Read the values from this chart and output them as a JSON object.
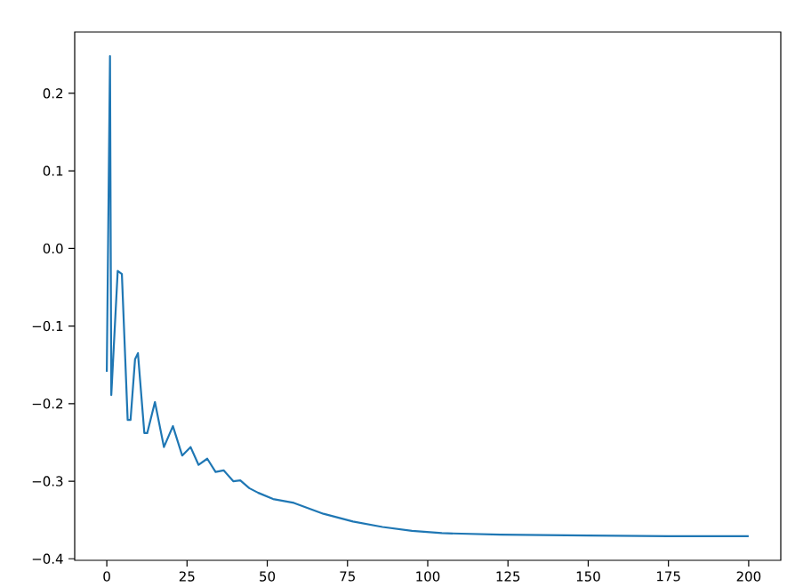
{
  "chart_data": {
    "type": "line",
    "color": "#1f77b4",
    "x": [
      0,
      1,
      1.4,
      3.4,
      4.7,
      6.5,
      7.4,
      8.8,
      9.7,
      11.7,
      12.6,
      15.0,
      17.8,
      20.6,
      23.5,
      26.1,
      28.6,
      31.3,
      33.9,
      36.4,
      39.4,
      41.6,
      44.4,
      47.2,
      51.8,
      58.3,
      67.5,
      76.7,
      85.9,
      95.1,
      104.4,
      122.7,
      150,
      175,
      200
    ],
    "values": [
      -0.159,
      0.248,
      -0.189,
      -0.029,
      -0.033,
      -0.221,
      -0.221,
      -0.143,
      -0.135,
      -0.238,
      -0.238,
      -0.198,
      -0.256,
      -0.229,
      -0.267,
      -0.256,
      -0.279,
      -0.271,
      -0.288,
      -0.286,
      -0.3,
      -0.299,
      -0.309,
      -0.315,
      -0.323,
      -0.328,
      -0.342,
      -0.352,
      -0.359,
      -0.364,
      -0.367,
      -0.369,
      -0.37,
      -0.371,
      -0.371
    ],
    "xlim": [
      -10,
      210
    ],
    "ylim": [
      -0.402,
      0.279
    ],
    "xticks": [
      0,
      25,
      50,
      75,
      100,
      125,
      150,
      175,
      200
    ],
    "yticks": [
      {
        "value": -0.4,
        "label": "−0.4"
      },
      {
        "value": -0.3,
        "label": "−0.3"
      },
      {
        "value": -0.2,
        "label": "−0.2"
      },
      {
        "value": -0.1,
        "label": "−0.1"
      },
      {
        "value": 0,
        "label": "0.0"
      },
      {
        "value": 0.1,
        "label": "0.1"
      },
      {
        "value": 0.2,
        "label": "0.2"
      }
    ]
  }
}
